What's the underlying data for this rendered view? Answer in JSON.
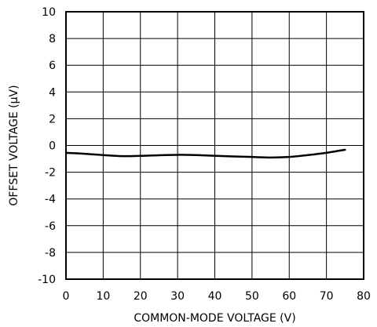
{
  "chart_data": {
    "type": "line",
    "title": "",
    "xlabel": "COMMON-MODE VOLTAGE (V)",
    "ylabel": "OFFSET VOLTAGE (µV)",
    "xlim": [
      0,
      80
    ],
    "ylim": [
      -10,
      10
    ],
    "xticks": [
      0,
      10,
      20,
      30,
      40,
      50,
      60,
      70,
      80
    ],
    "yticks": [
      -10,
      -8,
      -6,
      -4,
      -2,
      0,
      2,
      4,
      6,
      8,
      10
    ],
    "xtick_labels": [
      "0",
      "10",
      "20",
      "30",
      "40",
      "50",
      "60",
      "70",
      "80"
    ],
    "ytick_labels": [
      "-10",
      "-8",
      "-6",
      "-4",
      "-2",
      "0",
      "2",
      "4",
      "6",
      "8",
      "10"
    ],
    "grid": true,
    "series": [
      {
        "color": "#000000",
        "x": [
          0,
          5,
          10,
          15,
          20,
          25,
          30,
          35,
          40,
          45,
          50,
          55,
          60,
          65,
          70,
          75
        ],
        "y": [
          -0.55,
          -0.62,
          -0.72,
          -0.8,
          -0.78,
          -0.73,
          -0.7,
          -0.72,
          -0.77,
          -0.82,
          -0.86,
          -0.9,
          -0.86,
          -0.72,
          -0.55,
          -0.32
        ]
      }
    ]
  }
}
